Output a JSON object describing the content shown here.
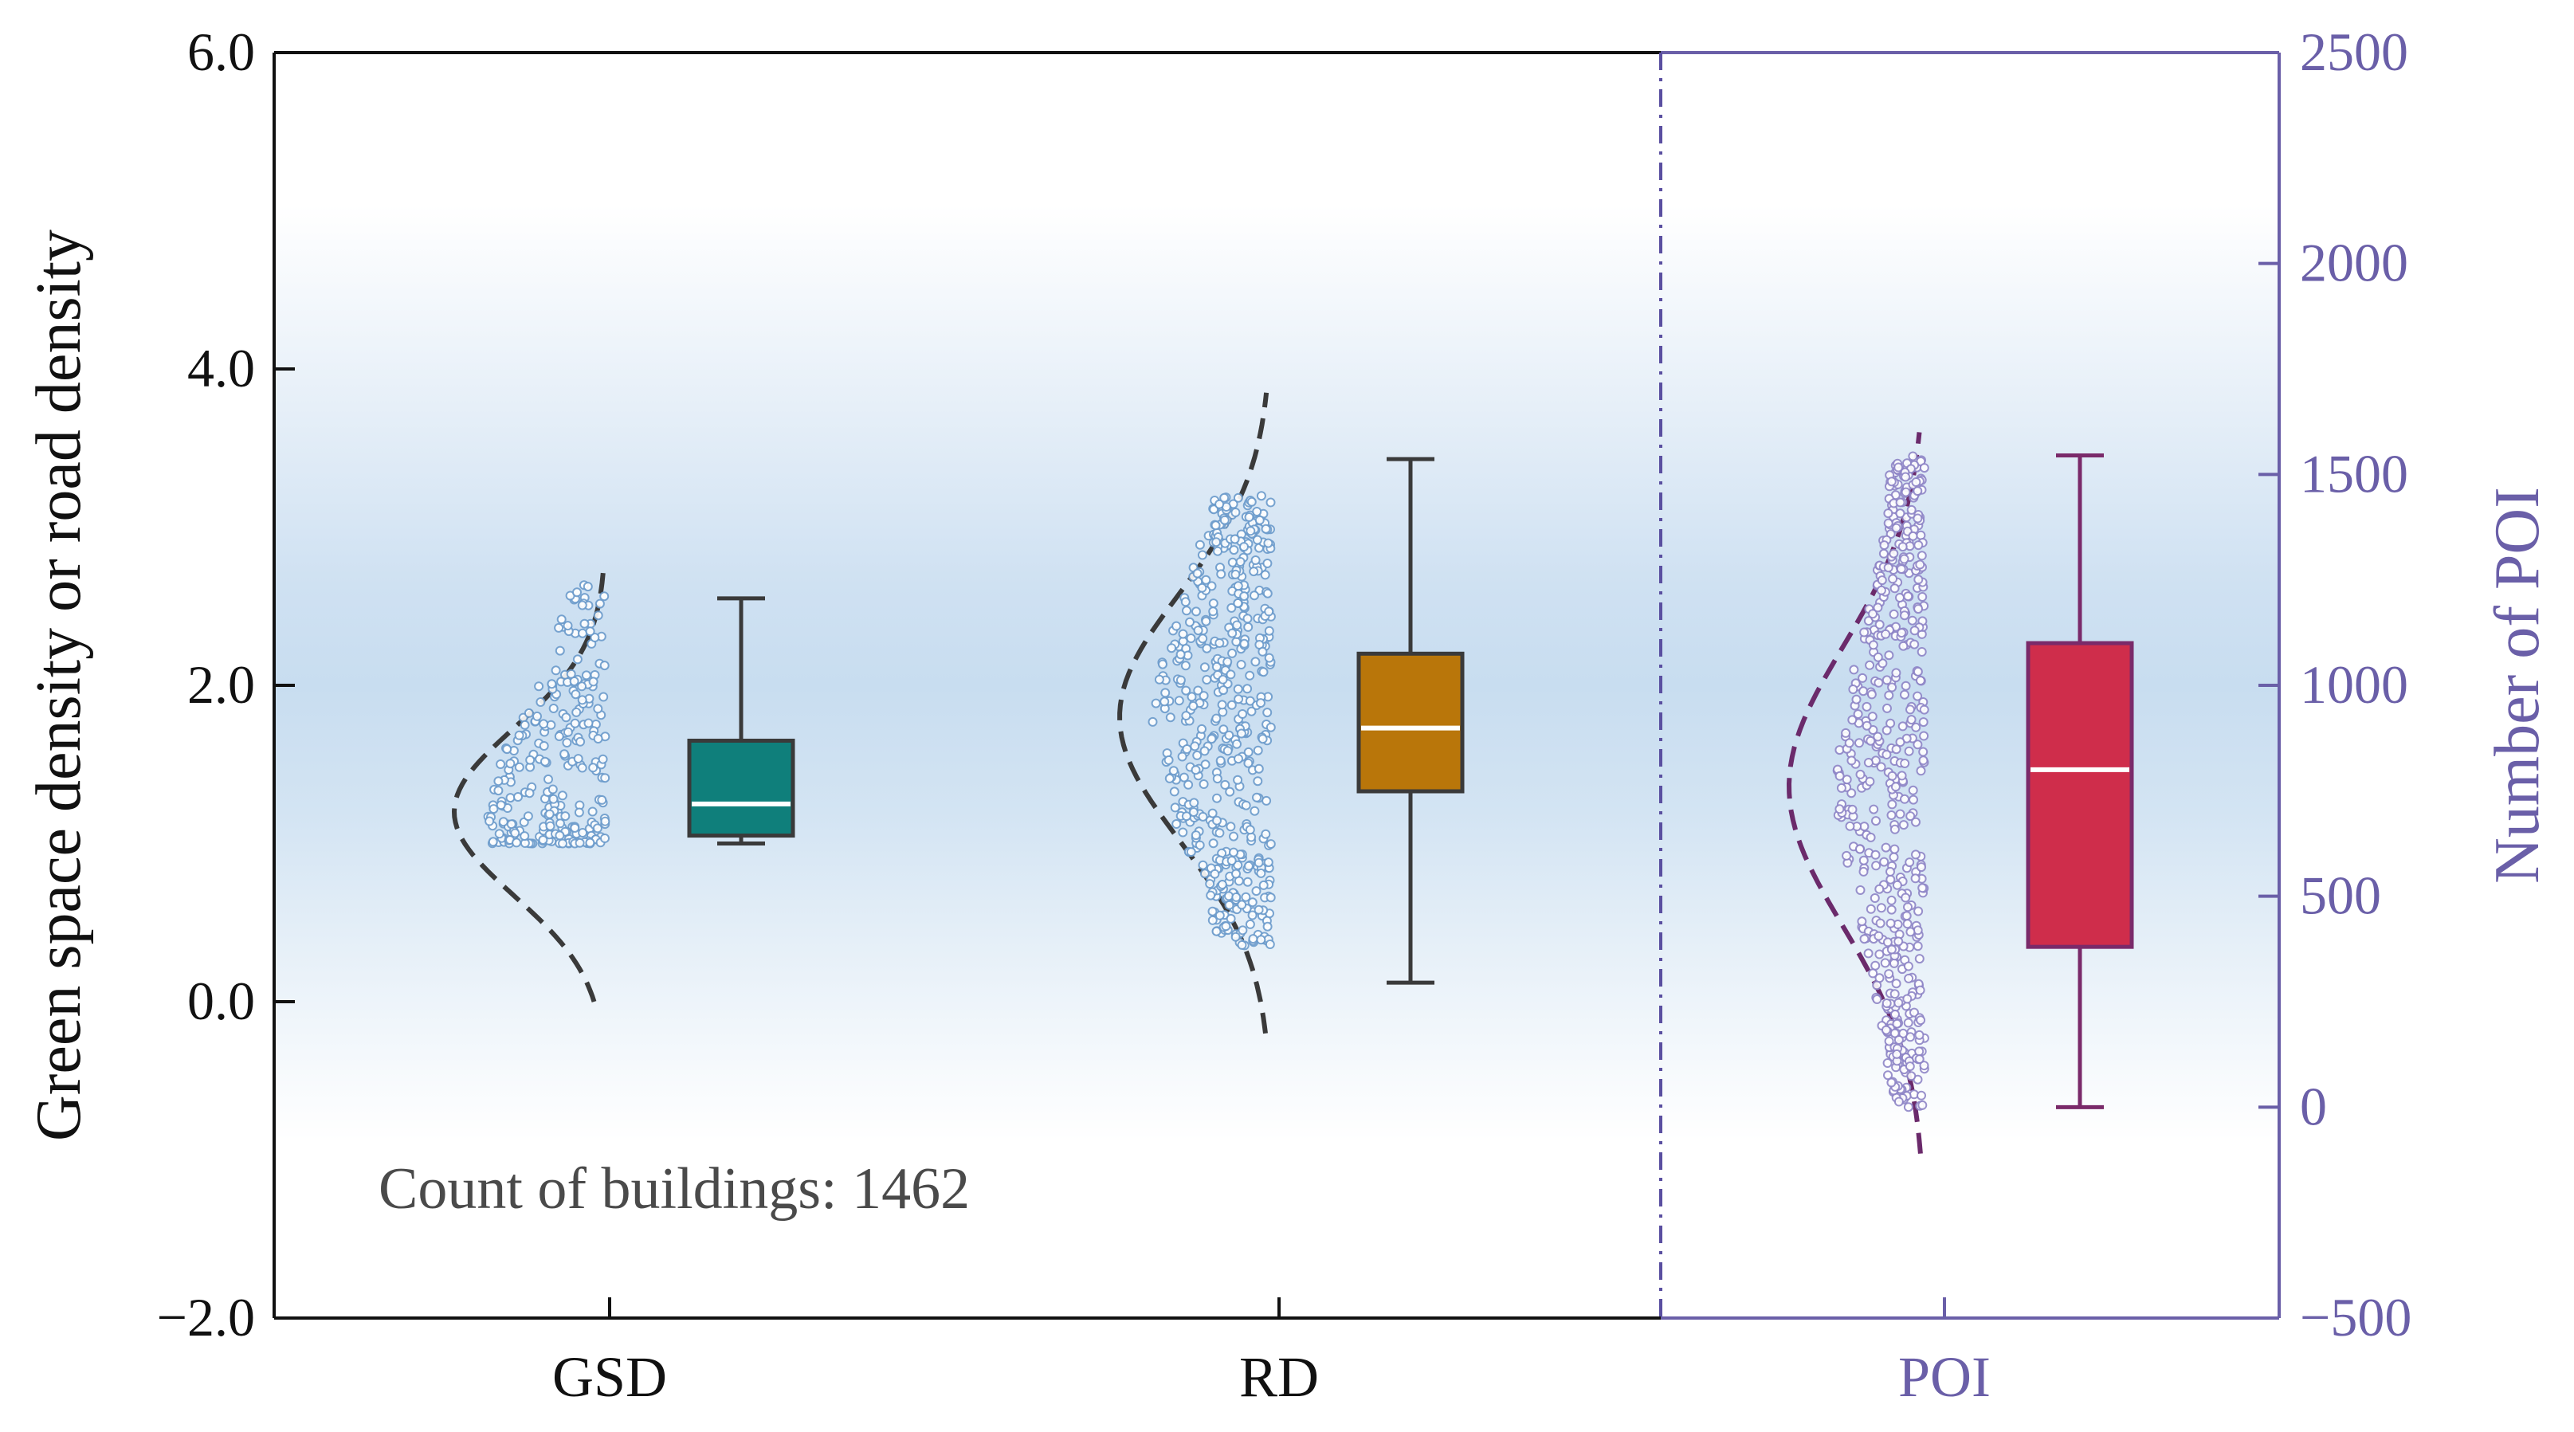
{
  "chart_data": {
    "type": "box",
    "title": "",
    "left_axis": {
      "label": "Green space density or road density",
      "ylim": [
        -2.0,
        6.0
      ],
      "ticks": [
        -2.0,
        0.0,
        2.0,
        4.0,
        6.0
      ],
      "tick_labels": [
        "−2.0",
        "0.0",
        "2.0",
        "4.0",
        "6.0"
      ]
    },
    "right_axis": {
      "label": "Number of POI",
      "ylim": [
        -500,
        2500
      ],
      "ticks": [
        -500,
        0,
        500,
        1000,
        1500,
        2000,
        2500
      ],
      "tick_labels": [
        "−500",
        "0",
        "500",
        "1000",
        "1500",
        "2000",
        "2500"
      ],
      "color": "#6a5fa8"
    },
    "categories": [
      "GSD",
      "RD",
      "POI"
    ],
    "series": [
      {
        "name": "GSD",
        "axis": "left",
        "color": "#0f7f7b",
        "curve_color": "#3a3a3a",
        "box": {
          "whisker_low": 1.0,
          "q1": 1.05,
          "median": 1.25,
          "q3": 1.65,
          "whisker_high": 2.55
        },
        "density_range": [
          0.0,
          2.75
        ],
        "density_peak": 1.2,
        "points_range": [
          1.0,
          2.65
        ]
      },
      {
        "name": "RD",
        "axis": "left",
        "color": "#b9760a",
        "curve_color": "#3a3a3a",
        "box": {
          "whisker_low": 0.12,
          "q1": 1.33,
          "median": 1.73,
          "q3": 2.2,
          "whisker_high": 3.43
        },
        "density_range": [
          -0.2,
          3.85
        ],
        "density_peak": 1.8,
        "points_range": [
          0.35,
          3.2
        ]
      },
      {
        "name": "POI",
        "axis": "right",
        "color": "#cf2d4b",
        "curve_color": "#6b2a6b",
        "box": {
          "whisker_low": 0,
          "q1": 380,
          "median": 800,
          "q3": 1100,
          "whisker_high": 1545
        },
        "density_range": [
          -110,
          1600
        ],
        "density_peak": 760,
        "points_range": [
          0,
          1550
        ]
      }
    ],
    "annotation": "Count of buildings: 1462",
    "grid": false
  }
}
